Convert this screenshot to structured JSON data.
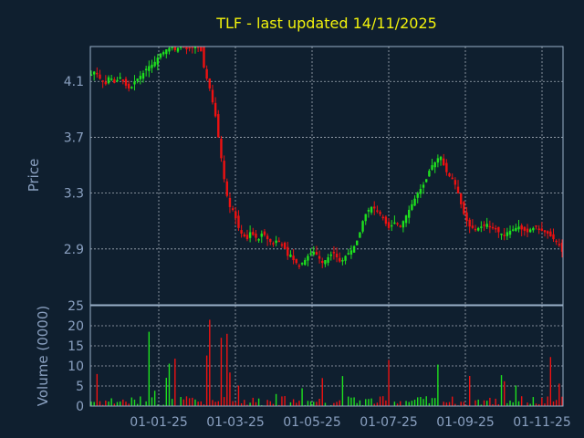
{
  "title": "TLF - last updated 14/11/2025",
  "colors": {
    "background": "#0f1f2f",
    "up": "#1ee01e",
    "down": "#ee1111",
    "axis_text": "#8aa0c0",
    "title": "#f2f20c",
    "grid": "#d8dee8"
  },
  "chart_data": [
    {
      "type": "candlestick",
      "ylabel": "Price",
      "ylim": [
        2.5,
        4.35
      ],
      "yticks": [
        "4.1",
        "3.7",
        "3.3",
        "2.9"
      ],
      "xticks": [
        "01-01-25",
        "01-03-25",
        "01-05-25",
        "01-07-25",
        "01-09-25",
        "01-11-25"
      ],
      "grid": true,
      "series_close": [
        4.15,
        4.17,
        4.16,
        4.12,
        4.1,
        4.08,
        4.13,
        4.12,
        4.09,
        4.11,
        4.13,
        4.1,
        4.07,
        4.05,
        4.06,
        4.1,
        4.12,
        4.14,
        4.16,
        4.19,
        4.21,
        4.22,
        4.24,
        4.27,
        4.3,
        4.31,
        4.33,
        4.34,
        4.35,
        4.33,
        4.34,
        4.35,
        4.35,
        4.33,
        4.34,
        4.35,
        4.36,
        4.35,
        4.33,
        4.2,
        4.12,
        4.05,
        3.95,
        3.85,
        3.7,
        3.55,
        3.4,
        3.28,
        3.2,
        3.18,
        3.12,
        3.05,
        3.01,
        2.99,
        2.97,
        3.02,
        3.0,
        2.98,
        2.97,
        3.01,
        3.0,
        2.97,
        2.95,
        2.94,
        2.96,
        2.95,
        2.93,
        2.9,
        2.85,
        2.86,
        2.82,
        2.8,
        2.78,
        2.8,
        2.82,
        2.85,
        2.87,
        2.88,
        2.86,
        2.83,
        2.8,
        2.82,
        2.84,
        2.86,
        2.87,
        2.84,
        2.81,
        2.82,
        2.85,
        2.87,
        2.89,
        2.92,
        2.96,
        3.02,
        3.1,
        3.15,
        3.18,
        3.2,
        3.19,
        3.17,
        3.15,
        3.12,
        3.08,
        3.05,
        3.07,
        3.09,
        3.08,
        3.06,
        3.1,
        3.14,
        3.18,
        3.22,
        3.26,
        3.3,
        3.33,
        3.36,
        3.4,
        3.46,
        3.5,
        3.52,
        3.55,
        3.56,
        3.5,
        3.45,
        3.42,
        3.4,
        3.36,
        3.3,
        3.22,
        3.15,
        3.1,
        3.06,
        3.05,
        3.04,
        3.05,
        3.06,
        3.07,
        3.08,
        3.06,
        3.05,
        3.04,
        3.02,
        3.01,
        3.0,
        3.02,
        3.03,
        3.04,
        3.05,
        3.06,
        3.04,
        3.03,
        3.02,
        3.04,
        3.05,
        3.06,
        3.04,
        3.03,
        3.02,
        3.01,
        2.99,
        2.97,
        2.95,
        2.93,
        2.88
      ],
      "volume_ylabel": "Volume (0000)",
      "volume_ylim": [
        0,
        25
      ],
      "volume_yticks": [
        "25",
        "20",
        "15",
        "10",
        "5",
        "0"
      ]
    }
  ]
}
